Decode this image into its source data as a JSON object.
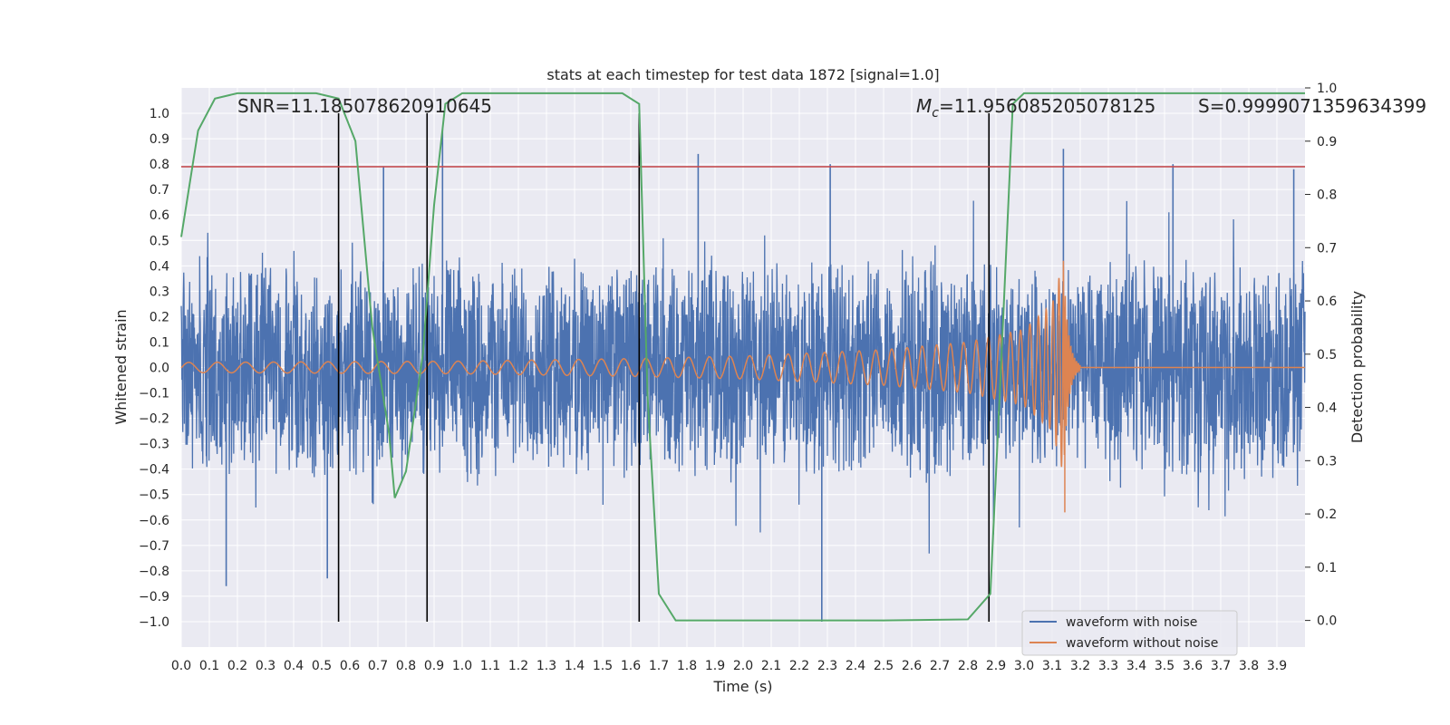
{
  "chart_data": {
    "type": "line",
    "title": "stats at each timestep for test data 1872 [signal=1.0]",
    "xlabel": "Time (s)",
    "ylabel": "Whitened strain",
    "y2label": "Detection probability",
    "xlim": [
      0.0,
      4.0
    ],
    "ylim": [
      -1.1,
      1.1
    ],
    "y2lim": [
      -0.05,
      1.0
    ],
    "x_ticks": [
      "0.0",
      "0.1",
      "0.2",
      "0.3",
      "0.4",
      "0.5",
      "0.6",
      "0.7",
      "0.8",
      "0.9",
      "1.0",
      "1.1",
      "1.2",
      "1.3",
      "1.4",
      "1.5",
      "1.6",
      "1.7",
      "1.8",
      "1.9",
      "2.0",
      "2.1",
      "2.2",
      "2.3",
      "2.4",
      "2.5",
      "2.6",
      "2.7",
      "2.8",
      "2.9",
      "3.0",
      "3.1",
      "3.2",
      "3.3",
      "3.4",
      "3.5",
      "3.6",
      "3.7",
      "3.8",
      "3.9"
    ],
    "y_ticks": [
      "1.0",
      "0.9",
      "0.8",
      "0.7",
      "0.6",
      "0.5",
      "0.4",
      "0.3",
      "0.2",
      "0.1",
      "0.0",
      "−0.1",
      "−0.2",
      "−0.3",
      "−0.4",
      "−0.5",
      "−0.6",
      "−0.7",
      "−0.8",
      "−0.9",
      "−1.0"
    ],
    "y2_ticks": [
      "1.0",
      "0.9",
      "0.8",
      "0.7",
      "0.6",
      "0.5",
      "0.4",
      "0.3",
      "0.2",
      "0.1",
      "0.0"
    ],
    "grid": true,
    "legend_position": "lower-right",
    "annotations": {
      "snr": "SNR=11.185078620910645",
      "mc_symbol": "M",
      "mc_sub": "c",
      "mc_value": "=11.956085205078125",
      "s": "S=0.9999071359634399"
    },
    "series": [
      {
        "name": "waveform with noise",
        "color": "#4c72b0",
        "axis": "left",
        "description": "noisy whitened strain spanning roughly -0.6 to 0.6 with spikes to ±0.85",
        "amplitude_envelope": 0.4,
        "peak_spikes": [
          [
            0.52,
            -0.83
          ],
          [
            0.72,
            0.79
          ],
          [
            0.93,
            0.94
          ],
          [
            1.84,
            0.84
          ],
          [
            2.28,
            -1.0
          ],
          [
            2.31,
            0.8
          ],
          [
            3.14,
            0.86
          ],
          [
            3.53,
            0.8
          ],
          [
            3.96,
            0.78
          ],
          [
            0.16,
            -0.86
          ]
        ]
      },
      {
        "name": "waveform without noise",
        "color": "#dd8452",
        "axis": "left",
        "description": "chirp signal growing until merger at ~3.14 s",
        "x_merger": 3.14,
        "amplitude_points": [
          [
            0.0,
            0.02
          ],
          [
            1.0,
            0.025
          ],
          [
            1.6,
            0.035
          ],
          [
            2.0,
            0.045
          ],
          [
            2.5,
            0.07
          ],
          [
            2.8,
            0.1
          ],
          [
            3.0,
            0.15
          ],
          [
            3.1,
            0.25
          ],
          [
            3.14,
            0.42
          ],
          [
            3.15,
            0.0
          ]
        ]
      },
      {
        "name": "detection probability",
        "color": "#55a868",
        "axis": "right",
        "x": [
          0.0,
          0.06,
          0.12,
          0.2,
          0.3,
          0.4,
          0.48,
          0.56,
          0.62,
          0.68,
          0.74,
          0.76,
          0.8,
          0.86,
          0.9,
          0.94,
          1.0,
          1.1,
          1.3,
          1.5,
          1.57,
          1.63,
          1.66,
          1.7,
          1.76,
          1.85,
          2.0,
          2.5,
          2.8,
          2.88,
          2.92,
          2.96,
          3.0,
          3.2,
          3.5,
          3.8,
          4.0
        ],
        "values": [
          0.72,
          0.92,
          0.98,
          0.99,
          0.99,
          0.99,
          0.99,
          0.98,
          0.9,
          0.55,
          0.35,
          0.23,
          0.28,
          0.5,
          0.78,
          0.97,
          0.99,
          0.99,
          0.99,
          0.99,
          0.99,
          0.97,
          0.42,
          0.05,
          0.0,
          0.0,
          0.0,
          0.0,
          0.002,
          0.05,
          0.5,
          0.97,
          0.99,
          0.99,
          0.99,
          0.99,
          0.99
        ]
      }
    ],
    "threshold_line": {
      "value": 0.79,
      "color": "#c44e52",
      "axis": "left"
    },
    "vertical_markers": [
      0.56,
      0.875,
      1.63,
      2.875
    ]
  },
  "legend": {
    "items": [
      {
        "label": "waveform with noise",
        "color": "#4c72b0"
      },
      {
        "label": "waveform without noise",
        "color": "#dd8452"
      }
    ]
  }
}
